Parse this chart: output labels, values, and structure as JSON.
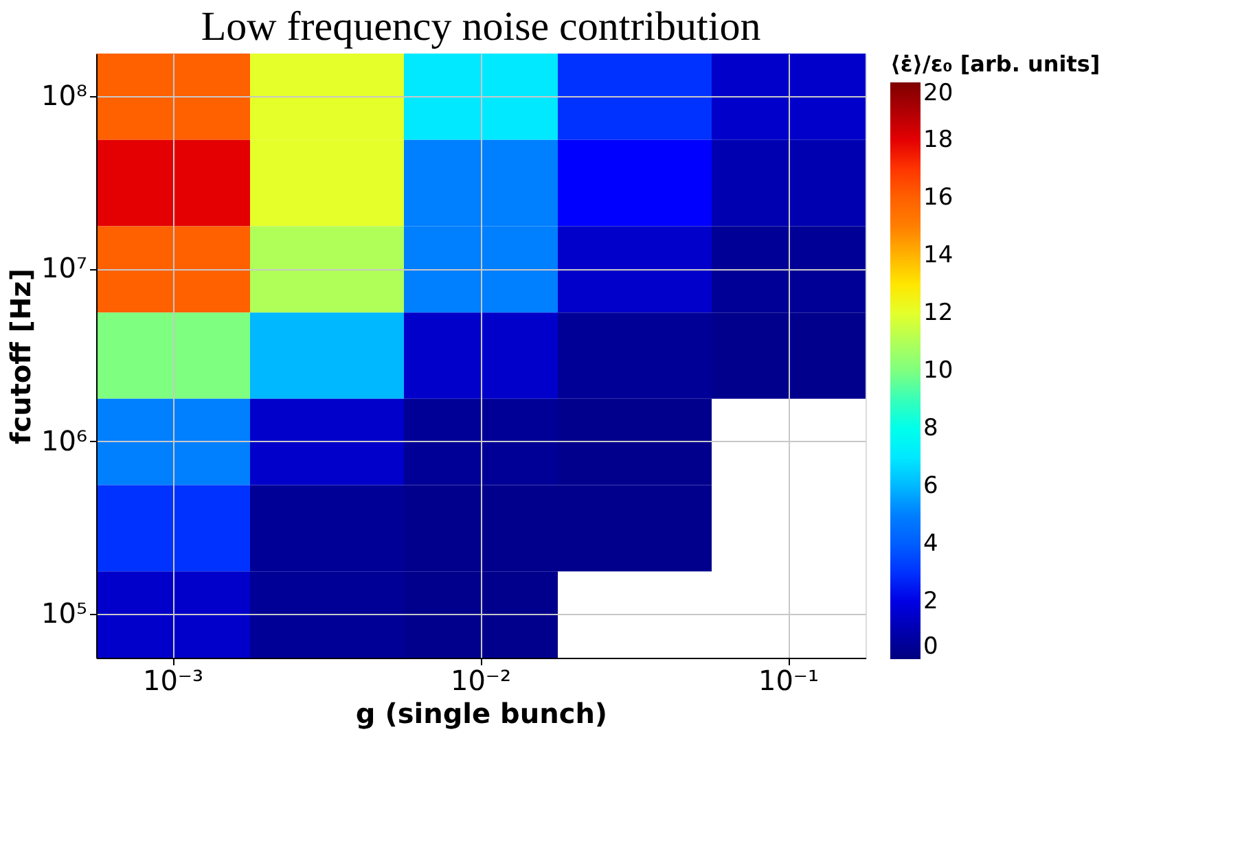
{
  "chart_data": {
    "type": "heatmap",
    "title": "Low frequency noise contribution",
    "xlabel": "g (single bunch)",
    "ylabel": "fcutoff [Hz]",
    "clabel": "⟨ε̇⟩/ε₀ [arb. units]",
    "categories": [
      "10⁻³",
      null,
      "10⁻²",
      null,
      "10⁻¹"
    ],
    "y_categories": [
      "10⁸",
      null,
      "10⁷",
      null,
      "10⁶",
      null,
      "10⁵"
    ],
    "cells": [
      [
        16,
        12,
        7,
        3,
        1.5
      ],
      [
        18,
        12,
        5,
        2.5,
        1
      ],
      [
        16,
        11,
        5,
        1.5,
        0.5
      ],
      [
        10,
        6,
        1.5,
        0.5,
        0.3
      ],
      [
        5,
        1.5,
        0.5,
        0.3,
        null
      ],
      [
        3,
        0.5,
        0.3,
        0.3,
        null
      ],
      [
        1.5,
        0.5,
        0.3,
        null,
        null
      ]
    ],
    "clim": [
      0,
      20
    ],
    "cticks": [
      0,
      2,
      4,
      6,
      8,
      10,
      12,
      14,
      16,
      18,
      20
    ],
    "grid": true
  }
}
